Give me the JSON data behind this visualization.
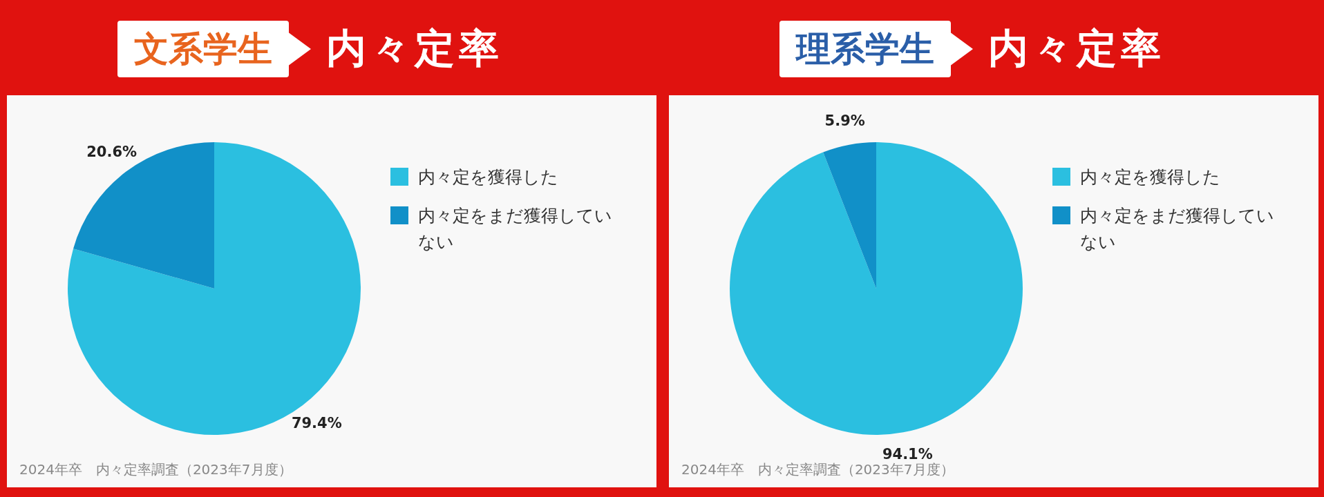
{
  "chart_data": [
    {
      "type": "pie",
      "title": "文系学生",
      "subtitle": "内々定率",
      "categories": [
        "内々定を獲得した",
        "内々定をまだ獲得していない"
      ],
      "values": [
        79.4,
        20.6
      ],
      "value_labels": [
        "79.4%",
        "20.6%"
      ],
      "colors": [
        "#2bbfe0",
        "#1190c8"
      ],
      "legend": "right",
      "annotations": [
        "2024年卒　内々定率調査（2023年7月度）"
      ]
    },
    {
      "type": "pie",
      "title": "理系学生",
      "subtitle": "内々定率",
      "categories": [
        "内々定を獲得した",
        "内々定をまだ獲得していない"
      ],
      "values": [
        94.1,
        5.9
      ],
      "value_labels": [
        "94.1%",
        "5.9%"
      ],
      "colors": [
        "#2bbfe0",
        "#1190c8"
      ],
      "legend": "right",
      "annotations": [
        "2024年卒　内々定率調査（2023年7月度）"
      ]
    }
  ]
}
